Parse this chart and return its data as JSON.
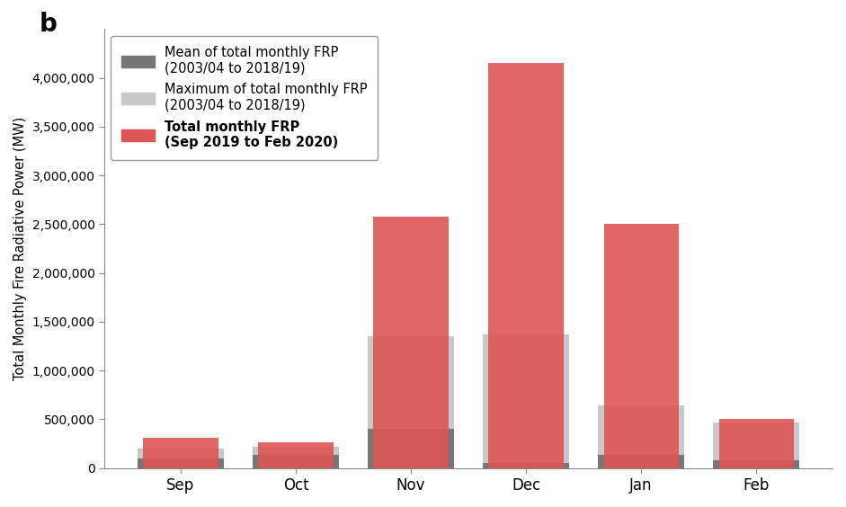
{
  "months": [
    "Sep",
    "Oct",
    "Nov",
    "Dec",
    "Jan",
    "Feb"
  ],
  "mean_frp": [
    95000,
    130000,
    400000,
    55000,
    130000,
    75000
  ],
  "max_frp": [
    195000,
    215000,
    1350000,
    1370000,
    645000,
    470000
  ],
  "total_frp": [
    305000,
    260000,
    2580000,
    4150000,
    2500000,
    500000
  ],
  "mean_color": "#777777",
  "max_color": "#c8c8c8",
  "total_color": "#e05555",
  "ylabel": "Total Monthly Fire Radiative Power (MW)",
  "ylim": [
    0,
    4500000
  ],
  "yticks": [
    0,
    500000,
    1000000,
    1500000,
    2000000,
    2500000,
    3000000,
    3500000,
    4000000
  ],
  "ytick_labels": [
    "0",
    "500,000",
    "1,000,000",
    "1,500,000",
    "2,000,000",
    "2,500,000",
    "3,000,000",
    "3,500,000",
    "4,000,000"
  ],
  "label_b": "b",
  "legend_mean": "Mean of total monthly FRP\n(2003/04 to 2018/19)",
  "legend_max": "Maximum of total monthly FRP\n(2003/04 to 2018/19)",
  "legend_total": "Total monthly FRP\n(Sep 2019 to Feb 2020)",
  "bg_color": "#ffffff",
  "bar_width": 0.65,
  "max_bar_width": 0.75,
  "mean_bar_width": 0.75
}
